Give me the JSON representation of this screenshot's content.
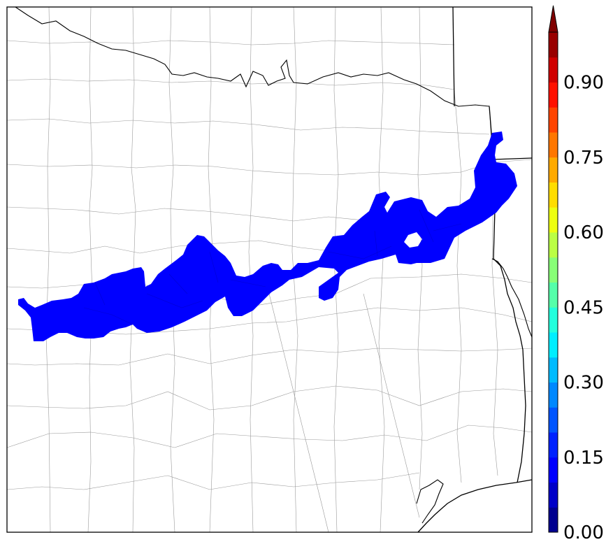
{
  "map": {
    "shaded_region_color": "#0000ff",
    "background_color": "#ffffff",
    "county_line_color": "#9a9a9a",
    "state_line_color": "#000000"
  },
  "colorbar": {
    "min": 0.0,
    "max": 1.0,
    "extend": "max",
    "colors": [
      "#00008f",
      "#0000c8",
      "#0000ff",
      "#0022ff",
      "#0055ff",
      "#0088ff",
      "#00bbff",
      "#00eeff",
      "#22ffdd",
      "#55ffaa",
      "#88ff77",
      "#bbff44",
      "#eeff11",
      "#ffdd00",
      "#ffaa00",
      "#ff7700",
      "#ff4400",
      "#ff1100",
      "#d00000",
      "#990000"
    ],
    "extend_color": "#800000",
    "tick_labels": [
      "0.00",
      "0.15",
      "0.30",
      "0.45",
      "0.60",
      "0.75",
      "0.90"
    ],
    "tick_values": [
      0.0,
      0.15,
      0.3,
      0.45,
      0.6,
      0.75,
      0.9
    ]
  }
}
